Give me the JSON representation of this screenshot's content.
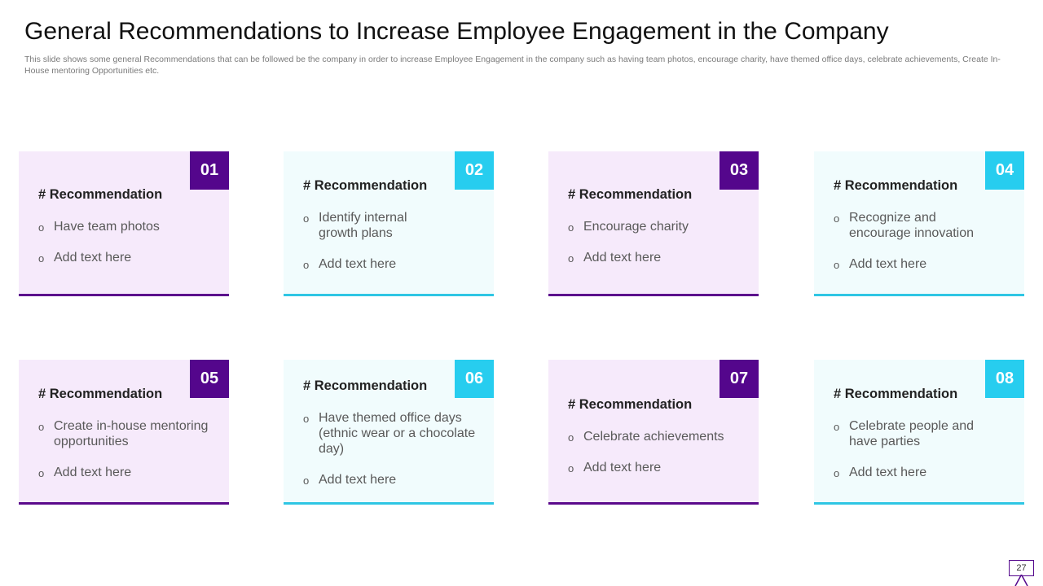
{
  "slide": {
    "title": "General Recommendations to Increase Employee Engagement in the Company",
    "subtitle": "This slide shows some general Recommendations that can be followed be the company in order to increase Employee Engagement in the company such as having team photos, encourage charity, have themed office days, celebrate achievements, Create In-House mentoring Opportunities etc.",
    "page_number": "27"
  },
  "colors": {
    "purple_accent": "#54068c",
    "cyan_accent": "#27cdef",
    "purple_bg": "#f6eafb",
    "cyan_bg": "#f1fcfd"
  },
  "cards": [
    {
      "number": "01",
      "heading": "# Recommendation",
      "bullets": [
        "Have team photos",
        "Add text here"
      ]
    },
    {
      "number": "02",
      "heading": "# Recommendation",
      "bullets": [
        "Identify internal growth plans",
        "Add text here"
      ]
    },
    {
      "number": "03",
      "heading": "# Recommendation",
      "bullets": [
        "Encourage charity",
        "Add text here"
      ]
    },
    {
      "number": "04",
      "heading": "# Recommendation",
      "bullets": [
        "Recognize and encourage innovation",
        "Add text here"
      ]
    },
    {
      "number": "05",
      "heading": "# Recommendation",
      "bullets": [
        "Create in-house mentoring opportunities",
        "Add text here"
      ]
    },
    {
      "number": "06",
      "heading": "# Recommendation",
      "bullets": [
        "Have themed office days (ethnic wear or a chocolate day)",
        "Add text here"
      ]
    },
    {
      "number": "07",
      "heading": "# Recommendation",
      "bullets": [
        "Celebrate achievements",
        "Add text here"
      ]
    },
    {
      "number": "08",
      "heading": "# Recommendation",
      "bullets": [
        "Celebrate people and have parties",
        "Add text here"
      ]
    }
  ]
}
